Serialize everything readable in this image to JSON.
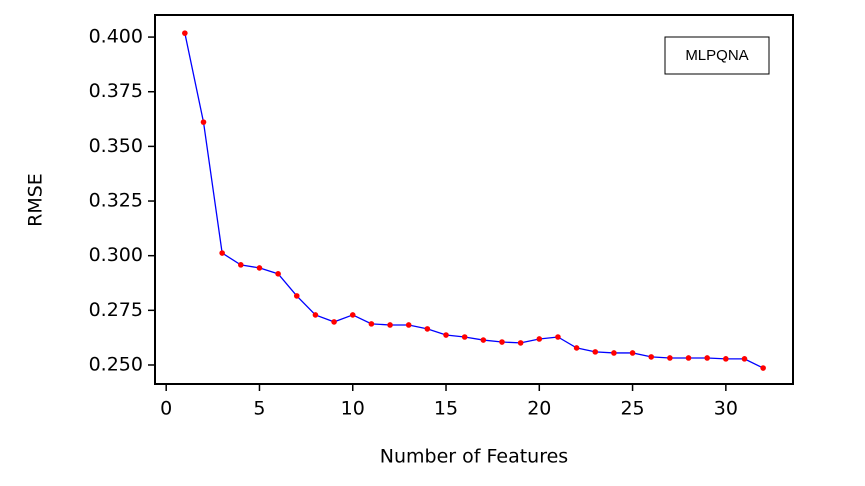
{
  "chart_data": {
    "type": "line",
    "xlabel": "Number of Features",
    "ylabel": "RMSE",
    "annotation": "MLPQNA",
    "x": [
      1,
      2,
      3,
      4,
      5,
      6,
      7,
      8,
      9,
      10,
      11,
      12,
      13,
      14,
      15,
      16,
      17,
      18,
      19,
      20,
      21,
      22,
      23,
      24,
      25,
      26,
      27,
      28,
      29,
      30,
      31,
      32
    ],
    "series": [
      {
        "color": "#0000ff",
        "marker_color": "#ff0000",
        "values": [
          0.4018,
          0.3611,
          0.3012,
          0.2958,
          0.2944,
          0.2917,
          0.2816,
          0.2729,
          0.2697,
          0.2729,
          0.2688,
          0.2683,
          0.2683,
          0.2665,
          0.2637,
          0.2628,
          0.2614,
          0.2605,
          0.2601,
          0.2619,
          0.2628,
          0.2578,
          0.256,
          0.2555,
          0.2555,
          0.2537,
          0.2532,
          0.2532,
          0.2532,
          0.2528,
          0.2528,
          0.2486
        ]
      }
    ],
    "xlim": [
      -0.6,
      33.6
    ],
    "ylim": [
      0.2413,
      0.4101
    ],
    "xticks": [
      0,
      5,
      10,
      15,
      20,
      25,
      30
    ],
    "yticks": [
      {
        "value": 0.25,
        "label": "0.250"
      },
      {
        "value": 0.275,
        "label": "0.275"
      },
      {
        "value": 0.3,
        "label": "0.300"
      },
      {
        "value": 0.325,
        "label": "0.325"
      },
      {
        "value": 0.35,
        "label": "0.350"
      },
      {
        "value": 0.375,
        "label": "0.375"
      },
      {
        "value": 0.4,
        "label": "0.400"
      }
    ]
  }
}
